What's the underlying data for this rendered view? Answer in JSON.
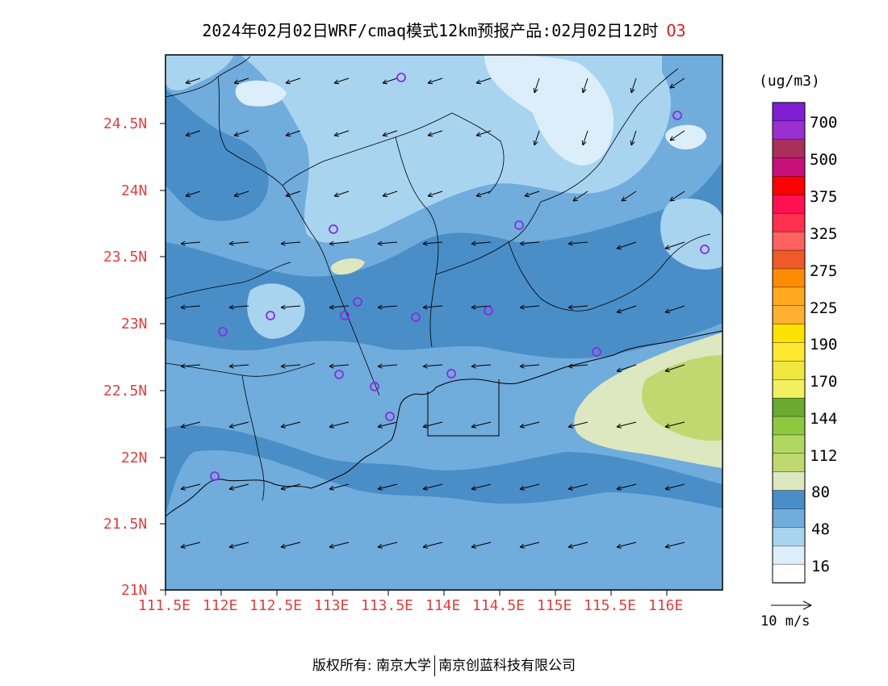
{
  "title": {
    "main": "2024年02月02日WRF/cmaq模式12km预报产品:02月02日12时",
    "species": "O3"
  },
  "axes": {
    "y_labels": [
      "24.5N",
      "24N",
      "23.5N",
      "23N",
      "22.5N",
      "22N",
      "21.5N",
      "21N"
    ],
    "x_labels": [
      "111.5E",
      "112E",
      "112.5E",
      "113E",
      "113.5E",
      "114E",
      "114.5E",
      "115E",
      "115.5E",
      "116E"
    ]
  },
  "legend": {
    "unit": "(ug/m3)",
    "labels": [
      "700",
      "500",
      "375",
      "325",
      "275",
      "225",
      "190",
      "170",
      "144",
      "112",
      "80",
      "48",
      "16"
    ],
    "colors": [
      "#7f1fd4",
      "#9b30d0",
      "#a8305a",
      "#c8107a",
      "#ff0000",
      "#ff1050",
      "#ff3050",
      "#ff6060",
      "#f05a28",
      "#ff8c00",
      "#ffa820",
      "#ffb030",
      "#ffe100",
      "#ffe830",
      "#f0e840",
      "#f0f060",
      "#6aaa30",
      "#8cc840",
      "#b0d860",
      "#c0d870",
      "#dde8c0",
      "#4a8ec8",
      "#70acdc",
      "#a8d4f0",
      "#dceefa",
      "#ffffff"
    ]
  },
  "wind_reference": {
    "label": "10 m/s"
  },
  "copyright": {
    "left": "版权所有: 南京大学",
    "right": "南京创蓝科技有限公司"
  }
}
